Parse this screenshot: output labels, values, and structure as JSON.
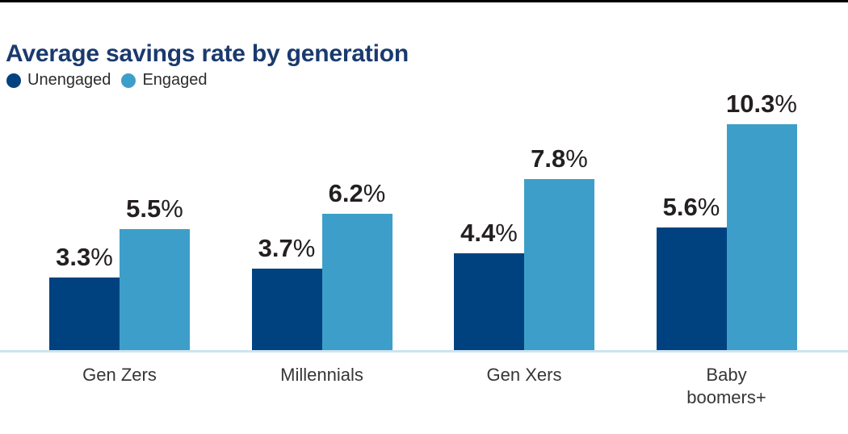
{
  "chart_data": {
    "type": "bar",
    "title": "Average savings rate by generation",
    "categories": [
      "Gen Zers",
      "Millennials",
      "Gen Xers",
      "Baby boomers+"
    ],
    "series": [
      {
        "name": "Unengaged",
        "color": "#004280",
        "values": [
          3.3,
          3.7,
          4.4,
          5.6
        ]
      },
      {
        "name": "Engaged",
        "color": "#3d9fc9",
        "values": [
          5.5,
          6.2,
          7.8,
          10.3
        ]
      }
    ],
    "unit": "%",
    "value_labels": true,
    "xlabel": "",
    "ylabel": "",
    "ylim": [
      0,
      11
    ],
    "grid": false,
    "legend_position": "top-left"
  },
  "colors": {
    "unengaged_bar": "#004280",
    "engaged_bar": "#3d9fc9",
    "title_text": "#1a3a6e",
    "value_label_text": "#231f20",
    "axis_label_text": "#363636",
    "baseline_rule": "#cde4f1",
    "top_rule": "#000000"
  }
}
